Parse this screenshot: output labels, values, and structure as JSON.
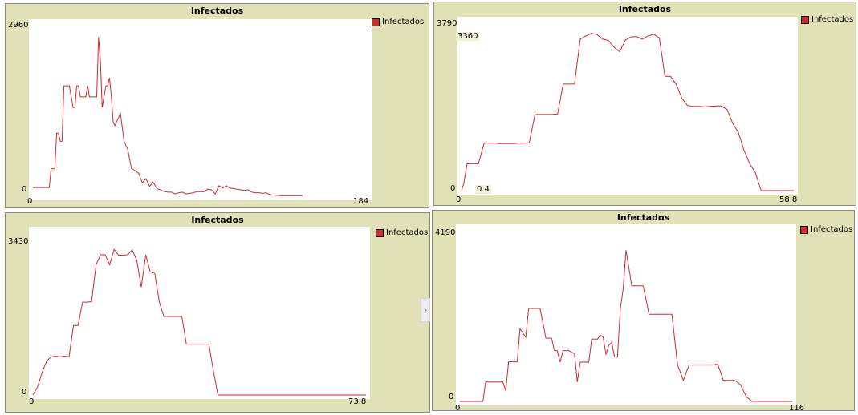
{
  "colors": {
    "line": "#d02a2a",
    "panel_bg": "#e1e1b8",
    "plot_bg": "#ffffff"
  },
  "handle_glyph": "›",
  "chart_data": [
    {
      "type": "line",
      "title": "Infectados",
      "legend": "Infectados",
      "xlim": [
        0,
        184
      ],
      "ylim": [
        0,
        2960
      ],
      "x_tick_labels": [
        "0",
        "184"
      ],
      "y_tick_labels": [
        "0",
        "2960"
      ],
      "series": [
        {
          "name": "Infectados",
          "x": [
            0,
            9,
            10,
            12,
            13,
            14,
            15,
            16,
            17,
            19,
            20,
            21,
            22,
            23,
            24,
            25,
            26,
            27,
            28,
            29,
            30,
            31,
            33,
            34,
            35,
            36,
            37,
            38,
            40,
            41,
            42,
            43,
            44,
            45,
            48,
            50,
            52,
            54,
            58,
            60,
            62,
            64,
            66,
            68,
            70,
            72,
            74,
            76,
            78,
            80,
            82,
            84,
            86,
            88,
            90,
            92,
            94,
            96,
            98,
            100,
            102,
            104,
            106,
            108,
            110,
            112,
            114,
            116,
            118,
            120,
            122,
            124,
            126,
            128,
            129,
            130,
            131,
            132,
            136,
            140,
            147,
            148
          ],
          "y": [
            150,
            150,
            470,
            470,
            1080,
            1080,
            940,
            940,
            1890,
            1890,
            1890,
            1700,
            1520,
            1520,
            1890,
            1890,
            1700,
            1700,
            1700,
            1700,
            1890,
            1700,
            1700,
            1700,
            1700,
            2720,
            2320,
            1520,
            1890,
            1890,
            2030,
            1710,
            1270,
            1210,
            1420,
            940,
            800,
            480,
            390,
            230,
            300,
            170,
            240,
            130,
            110,
            80,
            70,
            70,
            40,
            60,
            70,
            40,
            50,
            60,
            80,
            80,
            80,
            120,
            110,
            40,
            180,
            140,
            180,
            140,
            130,
            120,
            110,
            100,
            110,
            70,
            60,
            60,
            50,
            60,
            40,
            30,
            20,
            20,
            10,
            10,
            10,
            10
          ]
        }
      ]
    },
    {
      "type": "line",
      "title": "Infectados",
      "legend": "Infectados",
      "xlim": [
        0,
        58.8
      ],
      "ylim": [
        0,
        3790
      ],
      "x_tick_labels": [
        "0",
        "58.8"
      ],
      "y_tick_labels": [
        "0",
        "3790"
      ],
      "coords": {
        "y": "3360",
        "x": "0.4"
      },
      "series": [
        {
          "name": "Infectados",
          "x": [
            0,
            0.4,
            1,
            2,
            3,
            4,
            5,
            6,
            7,
            8,
            9,
            10,
            11,
            12,
            13,
            14,
            15,
            16,
            17,
            18,
            19,
            20,
            21,
            22,
            23,
            24,
            25,
            26,
            27,
            28,
            29,
            30,
            31,
            32,
            33,
            34,
            35,
            36,
            37,
            38,
            39,
            40,
            41,
            42,
            43,
            44,
            45,
            46,
            47,
            48,
            49,
            50,
            51,
            52,
            53,
            54,
            55,
            56,
            57,
            58,
            58.8
          ],
          "y": [
            0,
            160,
            600,
            600,
            600,
            1060,
            1060,
            1060,
            1050,
            1050,
            1050,
            1060,
            1060,
            1070,
            1700,
            1700,
            1700,
            1700,
            1710,
            2380,
            2380,
            2380,
            3380,
            3450,
            3510,
            3480,
            3380,
            3350,
            3200,
            3100,
            3360,
            3430,
            3440,
            3380,
            3450,
            3490,
            3410,
            2550,
            2550,
            2370,
            2060,
            1900,
            1880,
            1880,
            1870,
            1880,
            1890,
            1890,
            1810,
            1500,
            1300,
            900,
            600,
            400,
            0,
            0,
            0,
            0,
            0,
            0,
            0
          ]
        }
      ]
    },
    {
      "type": "line",
      "title": "Infectados",
      "legend": "Infectados",
      "xlim": [
        0,
        73.8
      ],
      "ylim": [
        0,
        3430
      ],
      "x_tick_labels": [
        "0",
        "73.8"
      ],
      "y_tick_labels": [
        "0",
        "3430"
      ],
      "series": [
        {
          "name": "Infectados",
          "x": [
            0,
            1,
            2,
            3,
            4,
            5,
            6,
            7,
            8,
            9,
            10,
            11,
            12,
            13,
            14,
            15,
            16,
            17,
            18,
            19,
            20,
            21,
            22,
            23,
            24,
            25,
            26,
            27,
            28,
            29,
            30,
            31,
            32,
            33,
            34,
            35,
            36,
            37,
            38,
            39,
            40,
            41,
            42,
            43,
            44,
            45,
            46,
            47,
            48,
            49,
            50,
            51,
            52,
            53,
            54,
            55,
            56,
            57,
            58,
            59,
            60,
            61,
            62,
            63,
            64,
            65,
            66,
            67,
            68,
            69,
            70,
            71,
            72,
            73,
            73.8
          ],
          "y": [
            0,
            160,
            460,
            700,
            800,
            810,
            800,
            810,
            800,
            1450,
            1450,
            1940,
            1940,
            1950,
            2720,
            2930,
            2930,
            2720,
            3040,
            2920,
            2920,
            2930,
            3030,
            2820,
            2250,
            2930,
            2570,
            2540,
            1940,
            1640,
            1640,
            1640,
            1640,
            1640,
            1060,
            1060,
            1060,
            1060,
            1060,
            1060,
            500,
            0,
            0,
            0,
            0,
            0,
            0,
            0,
            0,
            0,
            0,
            0,
            0,
            0,
            0,
            0,
            0,
            0,
            0,
            0,
            0,
            0,
            0,
            0,
            0,
            0,
            0,
            0,
            0,
            0,
            0,
            0,
            0,
            0,
            0
          ]
        }
      ]
    },
    {
      "type": "line",
      "title": "Infectados",
      "legend": "Infectados",
      "xlim": [
        0,
        116
      ],
      "ylim": [
        0,
        4190
      ],
      "x_tick_labels": [
        "0",
        "116"
      ],
      "y_tick_labels": [
        "0",
        "4190"
      ],
      "series": [
        {
          "name": "Infectados",
          "x": [
            0,
            6,
            7,
            8,
            9,
            10,
            11,
            12,
            14,
            15,
            16,
            17,
            18,
            19,
            20,
            21,
            23,
            24,
            25,
            26,
            27,
            28,
            30,
            31,
            32,
            33,
            34,
            35,
            36,
            38,
            40,
            41,
            42,
            43,
            44,
            45,
            46,
            48,
            49,
            50,
            51,
            52,
            53,
            54,
            55,
            56,
            57,
            58,
            60,
            62,
            64,
            66,
            68,
            70,
            72,
            74,
            76,
            78,
            80,
            82,
            84,
            86,
            88,
            90,
            92,
            94,
            96,
            98,
            100,
            102,
            104,
            106,
            108,
            110,
            112,
            114,
            116
          ],
          "y": [
            0,
            0,
            0,
            0,
            470,
            470,
            470,
            470,
            470,
            470,
            260,
            960,
            960,
            960,
            960,
            1760,
            1550,
            2250,
            2250,
            2250,
            2250,
            2250,
            1530,
            1530,
            1530,
            1230,
            1230,
            950,
            1230,
            1230,
            1150,
            470,
            950,
            950,
            950,
            950,
            1510,
            1510,
            1600,
            1560,
            1130,
            1360,
            1430,
            1070,
            1070,
            2240,
            2720,
            3660,
            2800,
            2800,
            2800,
            2110,
            2110,
            2110,
            2110,
            2110,
            880,
            510,
            880,
            880,
            880,
            880,
            880,
            900,
            510,
            510,
            510,
            400,
            110,
            0,
            0,
            0,
            0,
            0,
            0,
            0,
            0
          ]
        }
      ]
    }
  ]
}
